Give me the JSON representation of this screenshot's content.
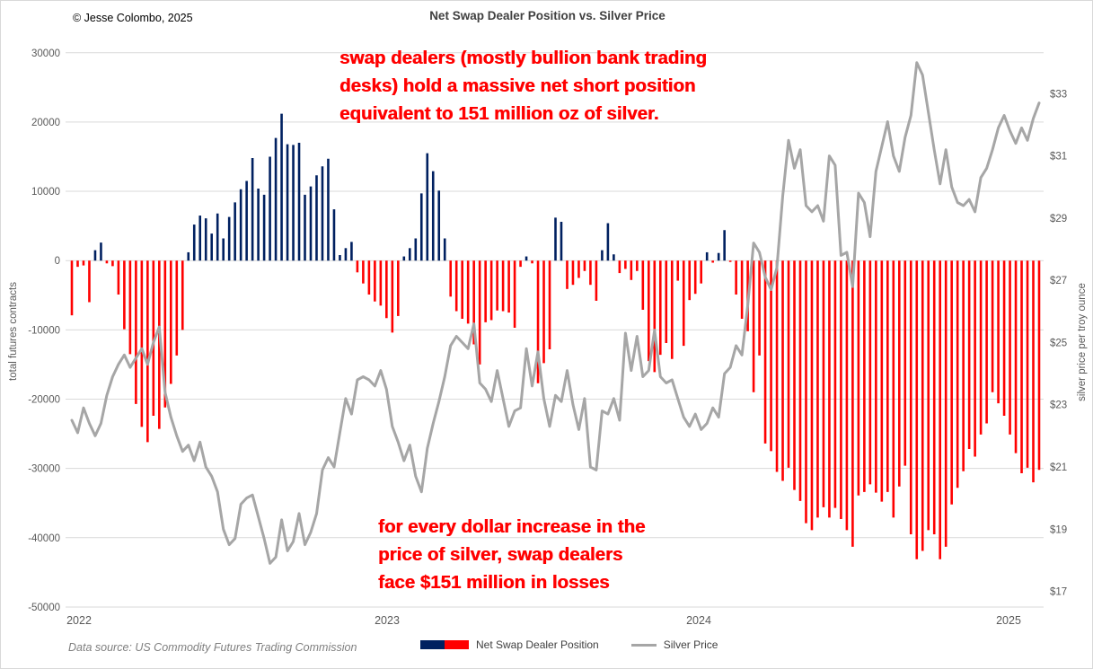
{
  "header": {
    "copyright": "© Jesse Colombo, 2025",
    "title": "Net Swap Dealer Position vs. Silver Price"
  },
  "annotations": {
    "top": {
      "lines": [
        "swap dealers (mostly bullion bank trading",
        "desks) hold a massive net short position",
        "equivalent to 151 million oz of silver."
      ]
    },
    "bottom": {
      "lines": [
        "for every dollar increase in the",
        "price of silver, swap dealers",
        "face $151 million in losses"
      ]
    }
  },
  "footer": {
    "data_source": "Data source: US Commodity Futures Trading Commission"
  },
  "legend": {
    "series1": "Net Swap Dealer Position",
    "series2": "Silver Price"
  },
  "axes": {
    "left_title": "total futures contracts",
    "right_title": "silver price per troy ounce",
    "left_ticks": [
      "30000",
      "20000",
      "10000",
      "0",
      "-10000",
      "-20000",
      "-30000",
      "-40000",
      "-50000"
    ],
    "right_ticks": [
      "$33",
      "$31",
      "$29",
      "$27",
      "$25",
      "$23",
      "$21",
      "$19",
      "$17"
    ],
    "x_ticks": [
      "2022",
      "2023",
      "2024",
      "2025"
    ]
  },
  "colors": {
    "positive_bar": "#002060",
    "negative_bar": "#ff0000",
    "silver_line": "#a6a6a6",
    "gridline": "#d9d9d9",
    "annotation": "#ff0000",
    "axis_text": "#595959",
    "title_text": "#404040"
  },
  "chart_data": {
    "type": "bar+line",
    "title": "Net Swap Dealer Position vs. Silver Price",
    "x_axis": {
      "unit": "weekly",
      "start": "2022",
      "end": "2025",
      "year_labels": [
        "2022",
        "2023",
        "2024",
        "2025"
      ]
    },
    "left_axis": {
      "label": "total futures contracts",
      "min": -50000,
      "max": 30000,
      "tick_step": 10000,
      "grid": true
    },
    "right_axis": {
      "label": "silver price per troy ounce",
      "min": 17,
      "max": 33,
      "tick_step": 2
    },
    "legend_position": "bottom",
    "series": [
      {
        "name": "Net Swap Dealer Position",
        "type": "bar",
        "axis": "left",
        "unit": "total futures contracts",
        "values": [
          -7900,
          -900,
          -700,
          -6000,
          1500,
          2600,
          -400,
          -800,
          -4900,
          -9900,
          -13500,
          -20700,
          -24000,
          -26200,
          -22400,
          -24300,
          -21200,
          -17800,
          -13700,
          -10000,
          1200,
          5200,
          6500,
          6100,
          3900,
          6800,
          3200,
          6300,
          8400,
          10300,
          11500,
          14800,
          10400,
          9500,
          15000,
          17700,
          21200,
          16800,
          16700,
          17000,
          9500,
          10700,
          12300,
          13600,
          14700,
          7400,
          800,
          1800,
          2700,
          -1700,
          -3300,
          -4900,
          -5900,
          -6500,
          -8300,
          -10400,
          -8000,
          600,
          1800,
          3200,
          9700,
          15500,
          12900,
          10100,
          3200,
          -5200,
          -7300,
          -8400,
          -9100,
          -12100,
          -15000,
          -8900,
          -8600,
          -7200,
          -7300,
          -7500,
          -9700,
          -900,
          600,
          -400,
          -17700,
          -14800,
          -12800,
          6200,
          5600,
          -4100,
          -3500,
          -2500,
          -1500,
          -3500,
          -5800,
          1500,
          5400,
          900,
          -1800,
          -1200,
          -2800,
          -1500,
          -7100,
          -14500,
          -16100,
          -13600,
          -11900,
          -14200,
          -2900,
          -12300,
          -5700,
          -4800,
          -3300,
          1200,
          -300,
          1100,
          4400,
          -200,
          -4900,
          -8400,
          -10200,
          -19000,
          -13700,
          -26400,
          -27500,
          -30500,
          -31800,
          -29900,
          -33100,
          -34700,
          -37900,
          -38900,
          -37100,
          -35600,
          -37100,
          -35700,
          -37300,
          -38900,
          -41300,
          -33900,
          -33400,
          -32300,
          -33500,
          -34800,
          -33400,
          -37100,
          -32600,
          -29600,
          -39500,
          -43100,
          -41900,
          -38900,
          -39500,
          -43100,
          -41300,
          -35200,
          -32800,
          -30400,
          -27200,
          -28300,
          -25100,
          -23500,
          -19000,
          -20600,
          -22400,
          -25100,
          -27800,
          -30700,
          -29900,
          -32000,
          -30200
        ]
      },
      {
        "name": "Silver Price",
        "type": "line",
        "axis": "right",
        "unit": "USD per troy ounce",
        "values": [
          22.5,
          22.1,
          22.9,
          22.4,
          22.0,
          22.4,
          23.3,
          23.9,
          24.3,
          24.6,
          24.2,
          24.5,
          24.8,
          24.3,
          25.0,
          25.5,
          23.4,
          22.6,
          22.0,
          21.5,
          21.7,
          21.2,
          21.8,
          21.0,
          20.7,
          20.2,
          19.0,
          18.5,
          18.7,
          19.8,
          20.0,
          20.1,
          19.4,
          18.7,
          17.9,
          18.1,
          19.3,
          18.3,
          18.6,
          19.5,
          18.5,
          18.9,
          19.5,
          20.9,
          21.3,
          21.0,
          22.1,
          23.2,
          22.7,
          23.8,
          23.9,
          23.8,
          23.6,
          24.1,
          23.5,
          22.3,
          21.8,
          21.2,
          21.7,
          20.7,
          20.2,
          21.6,
          22.4,
          23.1,
          23.9,
          24.9,
          25.2,
          25.0,
          24.8,
          25.6,
          23.7,
          23.5,
          23.1,
          24.1,
          23.2,
          22.3,
          22.8,
          22.9,
          24.8,
          23.6,
          24.7,
          23.2,
          22.3,
          23.3,
          23.1,
          24.1,
          23.0,
          22.2,
          23.2,
          21.0,
          20.9,
          22.8,
          22.7,
          23.2,
          22.5,
          25.3,
          24.1,
          25.2,
          23.9,
          24.1,
          25.4,
          23.9,
          23.7,
          23.8,
          23.2,
          22.6,
          22.3,
          22.7,
          22.2,
          22.4,
          22.9,
          22.6,
          24.0,
          24.2,
          24.9,
          24.6,
          26.2,
          28.2,
          27.9,
          27.1,
          26.7,
          27.4,
          29.7,
          31.5,
          30.6,
          31.2,
          29.4,
          29.2,
          29.4,
          28.9,
          31.0,
          30.7,
          27.8,
          27.9,
          26.8,
          29.8,
          29.5,
          28.4,
          30.5,
          31.3,
          32.1,
          31.0,
          30.5,
          31.6,
          32.3,
          34.0,
          33.6,
          32.4,
          31.2,
          30.1,
          31.2,
          30.0,
          29.5,
          29.4,
          29.6,
          29.2,
          30.3,
          30.6,
          31.2,
          31.9,
          32.3,
          31.8,
          31.4,
          31.9,
          31.5,
          32.2,
          32.7
        ]
      }
    ]
  }
}
